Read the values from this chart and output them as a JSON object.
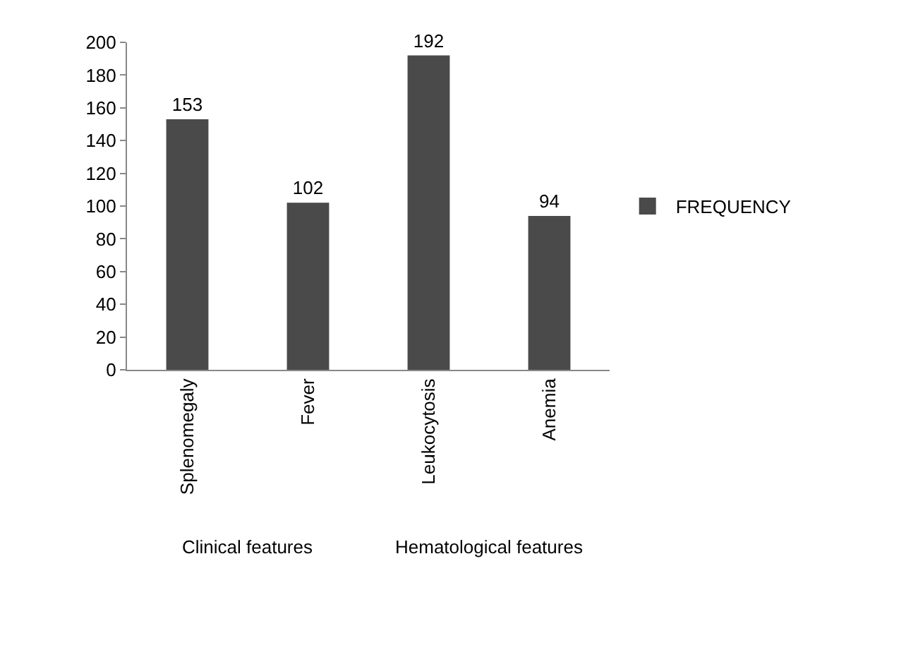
{
  "chart_data": {
    "type": "bar",
    "categories": [
      "Splenomegaly",
      "Fever",
      "Leukocytosis",
      "Anemia"
    ],
    "series": [
      {
        "name": "FREQUENCY",
        "color": "#4a4a4a",
        "values": [
          153,
          102,
          192,
          94
        ]
      }
    ],
    "ylim": [
      0,
      200
    ],
    "yticks": [
      0,
      20,
      40,
      60,
      80,
      100,
      120,
      140,
      160,
      180,
      200
    ],
    "data_labels": true,
    "legend": "right",
    "annotations": [
      "Clinical features",
      "Hematological features"
    ]
  }
}
